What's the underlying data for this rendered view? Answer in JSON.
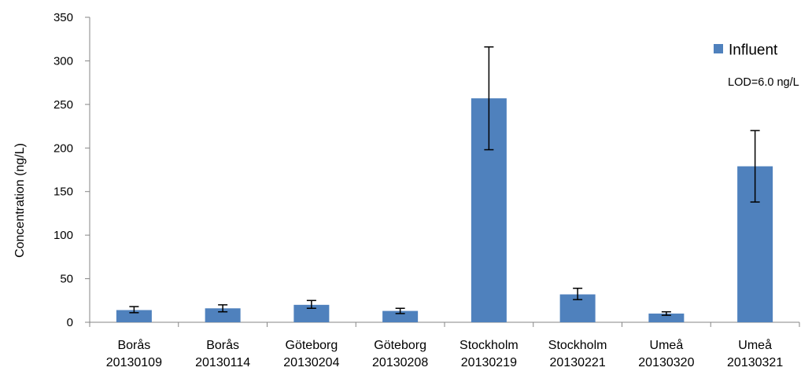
{
  "chart_data": {
    "type": "bar",
    "ylabel": "Concentration (ng/L)",
    "ylim": [
      0,
      350
    ],
    "yticks": [
      0,
      50,
      100,
      150,
      200,
      250,
      300,
      350
    ],
    "grid": false,
    "legend_position": "top-right",
    "annotation": "LOD=6.0 ng/L",
    "categories": [
      [
        "Borås",
        "20130109"
      ],
      [
        "Borås",
        "20130114"
      ],
      [
        "Göteborg",
        "20130204"
      ],
      [
        "Göteborg",
        "20130208"
      ],
      [
        "Stockholm",
        "20130219"
      ],
      [
        "Stockholm",
        "20130221"
      ],
      [
        "Umeå",
        "20130320"
      ],
      [
        "Umeå",
        "20130321"
      ]
    ],
    "series": [
      {
        "name": "Influent",
        "color": "#4f81bd",
        "values": [
          14,
          16,
          20,
          13,
          257,
          32,
          10,
          179
        ],
        "error_low": [
          11,
          12,
          16,
          10,
          198,
          26,
          8,
          138
        ],
        "error_high": [
          18,
          20,
          25,
          16,
          316,
          39,
          12,
          220
        ]
      }
    ]
  }
}
